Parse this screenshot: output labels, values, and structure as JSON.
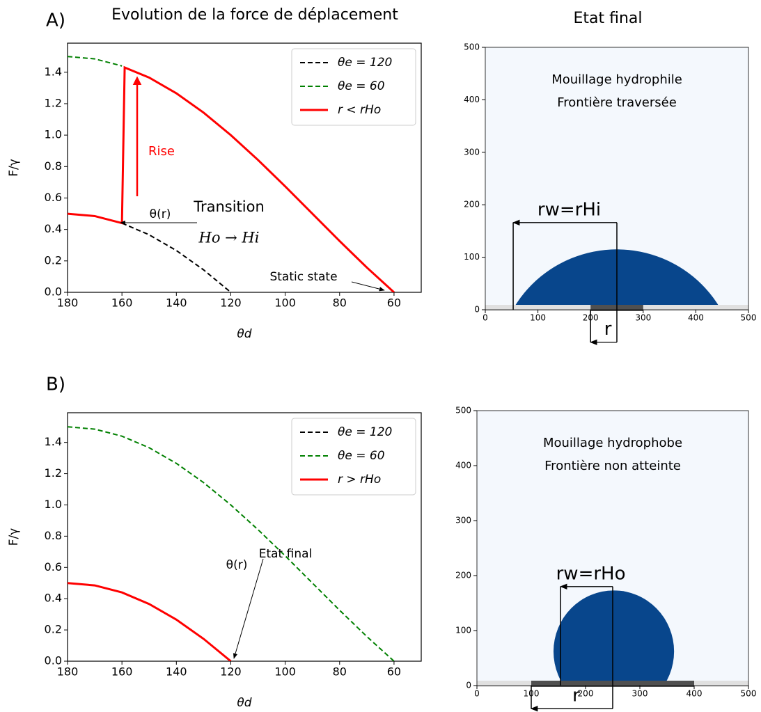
{
  "chart_data": [
    {
      "type": "line",
      "panel_label": "A)",
      "title": "Evolution de la force de déplacement",
      "xlabel": "θd",
      "ylabel": "F/γ",
      "xlim": [
        180,
        50
      ],
      "ylim": [
        0,
        1.585
      ],
      "xticks": [
        180,
        160,
        140,
        120,
        100,
        80,
        60
      ],
      "yticks": [
        {
          "value": 0,
          "label": "0.0"
        },
        0.2,
        0.4,
        0.6,
        0.8,
        {
          "value": 1,
          "label": "1.0"
        },
        1.2,
        1.4
      ],
      "legend": "upper right",
      "series": [
        {
          "name": "θe = 120",
          "color": "#000000",
          "dashed": true,
          "x": [
            160,
            150,
            140,
            130,
            120
          ],
          "values": [
            0.44,
            0.366,
            0.266,
            0.143,
            0
          ]
        },
        {
          "name": "θe = 60",
          "color": "#008000",
          "dashed": true,
          "x": [
            180,
            170,
            160
          ],
          "values": [
            1.5,
            1.485,
            1.44
          ]
        },
        {
          "name": "r < rHo",
          "color": "#ff0000",
          "dashed": false,
          "x": [
            180,
            170,
            160,
            159,
            150,
            140,
            130,
            120,
            110,
            100,
            90,
            80,
            70,
            60
          ],
          "values": [
            0.5,
            0.485,
            0.44,
            1.43,
            1.366,
            1.266,
            1.143,
            1,
            0.842,
            0.674,
            0.5,
            0.326,
            0.158,
            0
          ]
        }
      ],
      "annotations": [
        {
          "text": "Rise",
          "color": "#ff0000"
        },
        {
          "text": "θ(r)"
        },
        {
          "text": "Transition"
        },
        {
          "text": "Ho → Hi"
        },
        {
          "text": "Static state"
        }
      ]
    },
    {
      "type": "image",
      "title": "Etat final",
      "xlim": [
        0,
        500
      ],
      "ylim": [
        0,
        500
      ],
      "xticks": [
        0,
        100,
        200,
        300,
        400,
        500
      ],
      "yticks": [
        0,
        100,
        200,
        300,
        400,
        500
      ],
      "texts": [
        "Mouillage hydrophile",
        "Frontière traversée"
      ],
      "drop": {
        "center_x": 250,
        "center_y": -113,
        "radius": 228,
        "color": "#08468c"
      },
      "patch": [
        200,
        300
      ],
      "dimensions": [
        {
          "label": "rw=rHi",
          "x0": 250,
          "x1": 53,
          "y": 166
        },
        {
          "label": "r",
          "x0": 250,
          "x1": 200,
          "y": -62
        }
      ]
    },
    {
      "type": "line",
      "panel_label": "B)",
      "xlabel": "θd",
      "ylabel": "F/γ",
      "xlim": [
        180,
        50
      ],
      "ylim": [
        0,
        1.59
      ],
      "xticks": [
        180,
        160,
        140,
        120,
        100,
        80,
        60
      ],
      "yticks": [
        {
          "value": 0,
          "label": "0.0"
        },
        0.2,
        0.4,
        0.6,
        0.8,
        {
          "value": 1,
          "label": "1.0"
        },
        1.2,
        1.4
      ],
      "legend": "upper right",
      "series": [
        {
          "name": "θe = 120",
          "color": "#000000",
          "dashed": true,
          "x": [
            180,
            170,
            160,
            150,
            140,
            130,
            120
          ],
          "values": [
            0.5,
            0.485,
            0.44,
            0.366,
            0.266,
            0.143,
            0
          ]
        },
        {
          "name": "θe = 60",
          "color": "#008000",
          "dashed": true,
          "x": [
            180,
            170,
            160,
            150,
            140,
            130,
            120,
            110,
            100,
            90,
            80,
            70,
            60
          ],
          "values": [
            1.5,
            1.485,
            1.44,
            1.366,
            1.266,
            1.143,
            1,
            0.842,
            0.674,
            0.5,
            0.326,
            0.158,
            0
          ]
        },
        {
          "name": "r > rHo",
          "color": "#ff0000",
          "dashed": false,
          "x": [
            180,
            170,
            160,
            150,
            140,
            130,
            120
          ],
          "values": [
            0.5,
            0.485,
            0.44,
            0.366,
            0.266,
            0.143,
            0
          ]
        }
      ],
      "annotations": [
        {
          "text": "θ(r)"
        },
        {
          "text": "Etat final"
        }
      ]
    },
    {
      "type": "image",
      "xlim": [
        0,
        500
      ],
      "ylim": [
        0,
        500
      ],
      "xticks": [
        0,
        100,
        200,
        300,
        400,
        500
      ],
      "yticks": [
        0,
        100,
        200,
        300,
        400,
        500
      ],
      "texts": [
        "Mouillage hydrophobe",
        "Frontière non atteinte"
      ],
      "drop": {
        "center_x": 252,
        "center_y": 62,
        "radius": 111,
        "color": "#08468c"
      },
      "patch": [
        100,
        400
      ],
      "dimensions": [
        {
          "label": "rw=rHo",
          "x0": 250,
          "x1": 154,
          "y": 180
        },
        {
          "label": "r",
          "x0": 250,
          "x1": 100,
          "y": -42
        }
      ]
    }
  ]
}
